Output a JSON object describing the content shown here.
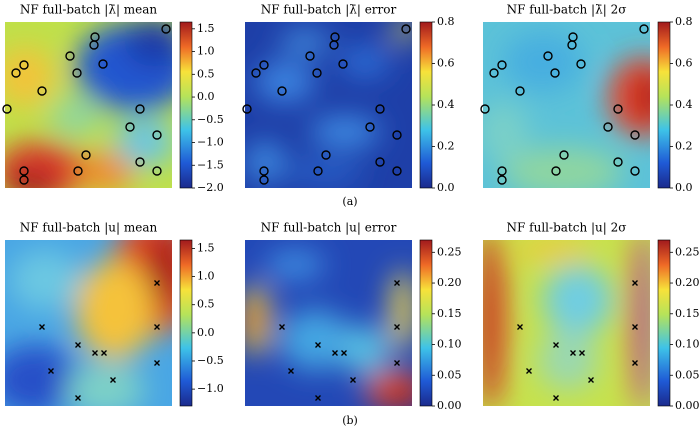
{
  "chart_data": [
    {
      "type": "heatmap",
      "title": "NF full-batch |λ̄| mean",
      "zlim": [
        -2.0,
        1.65
      ],
      "zticks": [
        1.5,
        {
          "value": 1.0,
          "label": "1.0"
        },
        0.5,
        {
          "value": 0.0,
          "label": "0.0"
        },
        {
          "value": -0.5,
          "label": "−0.5"
        },
        {
          "value": -1.0,
          "label": "−1.0"
        },
        {
          "value": -1.5,
          "label": "−1.5"
        },
        {
          "value": -2.0,
          "label": "−2.0"
        }
      ]
    },
    {
      "type": "heatmap",
      "title": "NF full-batch |λ̄| error",
      "zlim": [
        0.0,
        0.8
      ],
      "zticks": [
        {
          "value": 0.0,
          "label": "0.0"
        },
        0.2,
        0.4,
        0.6,
        0.8
      ]
    },
    {
      "type": "heatmap",
      "title": "NF full-batch |λ̄| 2σ",
      "zlim": [
        0.0,
        0.8
      ],
      "zticks": [
        {
          "value": 0.0,
          "label": "0.0"
        },
        0.2,
        0.4,
        0.6,
        0.8
      ]
    },
    {
      "type": "heatmap",
      "title": "NF full-batch |u| mean",
      "zlim": [
        -1.3,
        1.65
      ],
      "zticks": [
        1.5,
        {
          "value": 1.0,
          "label": "1.0"
        },
        0.5,
        {
          "value": 0.0,
          "label": "0.0"
        },
        {
          "value": -0.5,
          "label": "−0.5"
        },
        {
          "value": -1.0,
          "label": "−1.0"
        }
      ]
    },
    {
      "type": "heatmap",
      "title": "NF full-batch |u| error",
      "zlim": [
        0.0,
        0.27
      ],
      "zticks": [
        {
          "value": 0.0,
          "label": "0.00"
        },
        0.05,
        {
          "value": 0.1,
          "label": "0.10"
        },
        0.15,
        {
          "value": 0.2,
          "label": "0.20"
        },
        0.25
      ]
    },
    {
      "type": "heatmap",
      "title": "NF full-batch |u| 2σ",
      "zlim": [
        0.0,
        0.27
      ],
      "zticks": [
        {
          "value": 0.0,
          "label": "0.00"
        },
        0.05,
        {
          "value": 0.1,
          "label": "0.10"
        },
        0.15,
        {
          "value": 0.2,
          "label": "0.20"
        },
        0.25
      ]
    }
  ],
  "captions": [
    "(a)",
    "(b)"
  ]
}
